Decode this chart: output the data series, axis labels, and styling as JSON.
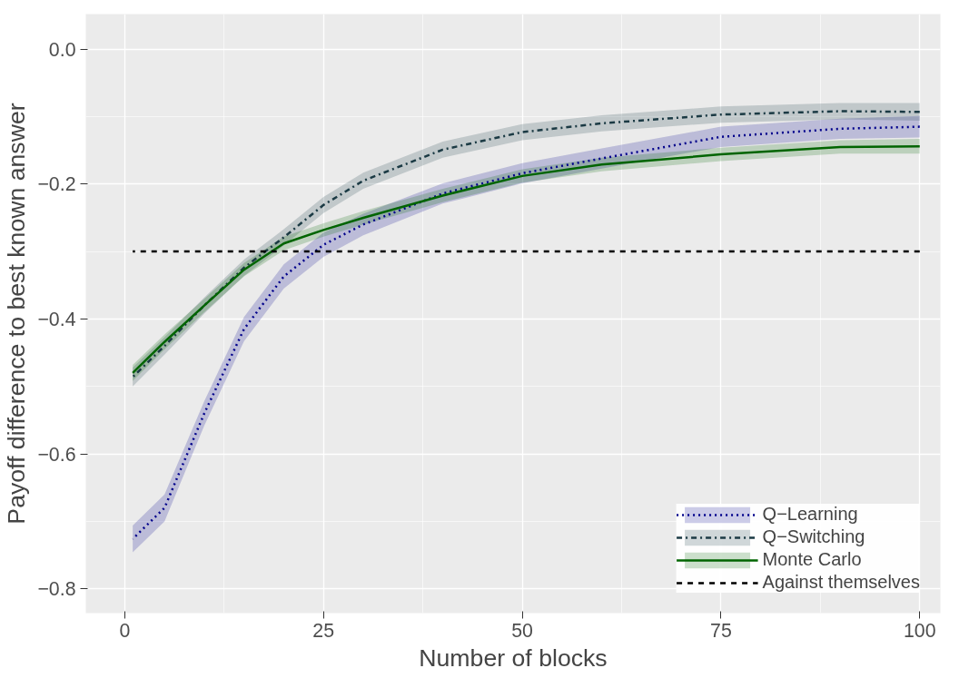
{
  "chart_data": {
    "type": "line",
    "xlabel": "Number of blocks",
    "ylabel": "Payoff difference to best known answer",
    "xlim": [
      -4.9,
      102.6
    ],
    "ylim": [
      -0.836,
      0.052
    ],
    "xticks": [
      0,
      25,
      50,
      75,
      100
    ],
    "yticks": [
      {
        "value": -0.8,
        "label": "−0.8"
      },
      {
        "value": -0.6,
        "label": "−0.6"
      },
      {
        "value": -0.4,
        "label": "−0.4"
      },
      {
        "value": -0.2,
        "label": "−0.2"
      },
      {
        "value": 0,
        "label": "0.0"
      }
    ],
    "grid": true,
    "legend": "bottom right",
    "x": [
      1,
      5,
      10,
      15,
      20,
      25,
      30,
      40,
      50,
      60,
      75,
      90,
      100
    ],
    "series": [
      {
        "name": "Q−Learning",
        "color": "#00008b",
        "line_style": "dotted",
        "values": [
          -0.726,
          -0.68,
          -0.54,
          -0.415,
          -0.337,
          -0.29,
          -0.26,
          -0.214,
          -0.184,
          -0.162,
          -0.13,
          -0.118,
          -0.115
        ],
        "lower": [
          -0.746,
          -0.7,
          -0.558,
          -0.433,
          -0.355,
          -0.308,
          -0.276,
          -0.229,
          -0.199,
          -0.177,
          -0.145,
          -0.133,
          -0.131
        ],
        "upper": [
          -0.706,
          -0.66,
          -0.522,
          -0.397,
          -0.319,
          -0.272,
          -0.244,
          -0.199,
          -0.169,
          -0.147,
          -0.115,
          -0.103,
          -0.099
        ]
      },
      {
        "name": "Q−Switching",
        "color": "#1b3a44",
        "line_style": "dashdot",
        "values": [
          -0.486,
          -0.44,
          -0.38,
          -0.324,
          -0.279,
          -0.231,
          -0.195,
          -0.149,
          -0.123,
          -0.11,
          -0.097,
          -0.092,
          -0.093
        ],
        "lower": [
          -0.5,
          -0.453,
          -0.392,
          -0.336,
          -0.291,
          -0.243,
          -0.207,
          -0.161,
          -0.135,
          -0.122,
          -0.109,
          -0.104,
          -0.106
        ],
        "upper": [
          -0.472,
          -0.427,
          -0.368,
          -0.312,
          -0.267,
          -0.219,
          -0.183,
          -0.137,
          -0.111,
          -0.098,
          -0.085,
          -0.08,
          -0.08
        ]
      },
      {
        "name": "Monte Carlo",
        "color": "#006400",
        "line_style": "solid",
        "values": [
          -0.48,
          -0.434,
          -0.38,
          -0.327,
          -0.288,
          -0.268,
          -0.25,
          -0.217,
          -0.188,
          -0.171,
          -0.156,
          -0.145,
          -0.144
        ],
        "lower": [
          -0.492,
          -0.445,
          -0.39,
          -0.337,
          -0.298,
          -0.278,
          -0.26,
          -0.227,
          -0.198,
          -0.181,
          -0.166,
          -0.155,
          -0.155
        ],
        "upper": [
          -0.468,
          -0.423,
          -0.37,
          -0.317,
          -0.278,
          -0.258,
          -0.24,
          -0.207,
          -0.178,
          -0.161,
          -0.146,
          -0.135,
          -0.133
        ]
      },
      {
        "name": "Against themselves",
        "color": "#000000",
        "line_style": "dashed",
        "x": [
          1,
          100
        ],
        "values": [
          -0.3,
          -0.3
        ]
      }
    ]
  }
}
